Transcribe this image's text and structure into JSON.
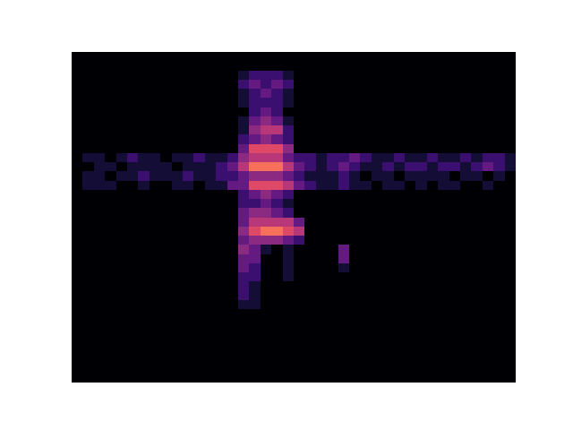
{
  "chart_data": {
    "type": "heatmap",
    "tick_labels": false,
    "grid": false,
    "zlim": [
      0,
      10
    ],
    "z": [
      [
        0,
        0,
        0,
        0,
        0,
        0,
        0,
        0,
        0,
        0,
        0,
        0,
        0,
        0,
        0,
        0,
        0,
        0,
        0,
        0,
        0,
        0,
        0,
        0,
        0,
        0,
        0,
        0,
        0,
        0,
        0,
        0,
        0,
        0,
        0,
        0,
        0,
        0,
        0,
        0
      ],
      [
        0,
        0,
        0,
        0,
        0,
        0,
        0,
        0,
        0,
        0,
        0,
        0,
        0,
        0,
        0,
        0,
        0,
        0,
        0,
        0,
        0,
        0,
        0,
        0,
        0,
        0,
        0,
        0,
        0,
        0,
        0,
        0,
        0,
        0,
        0,
        0,
        0,
        0,
        0,
        0
      ],
      [
        0,
        0,
        0,
        0,
        0,
        0,
        0,
        0,
        0,
        0,
        0,
        0,
        0,
        0,
        0,
        1,
        2,
        2,
        2,
        1,
        0,
        0,
        0,
        0,
        0,
        0,
        0,
        0,
        0,
        0,
        0,
        0,
        0,
        0,
        0,
        0,
        0,
        0,
        0,
        0
      ],
      [
        0,
        0,
        0,
        0,
        0,
        0,
        0,
        0,
        0,
        0,
        0,
        0,
        0,
        0,
        0,
        2,
        3,
        2,
        3,
        2,
        0,
        0,
        0,
        0,
        0,
        0,
        0,
        0,
        0,
        0,
        0,
        0,
        0,
        0,
        0,
        0,
        0,
        0,
        0,
        0
      ],
      [
        0,
        0,
        0,
        0,
        0,
        0,
        0,
        0,
        0,
        0,
        0,
        0,
        0,
        0,
        0,
        1,
        2,
        3,
        2,
        1,
        0,
        0,
        0,
        0,
        0,
        0,
        0,
        0,
        0,
        0,
        0,
        0,
        0,
        0,
        0,
        0,
        0,
        0,
        0,
        0
      ],
      [
        0,
        0,
        0,
        0,
        0,
        0,
        0,
        0,
        0,
        0,
        0,
        0,
        0,
        0,
        0,
        1,
        2,
        2,
        2,
        1,
        0,
        0,
        0,
        0,
        0,
        0,
        0,
        0,
        0,
        0,
        0,
        0,
        0,
        0,
        0,
        0,
        0,
        0,
        0,
        0
      ],
      [
        0,
        0,
        0,
        0,
        0,
        0,
        0,
        0,
        0,
        0,
        0,
        0,
        0,
        0,
        0,
        0,
        2,
        3,
        2,
        0,
        0,
        0,
        0,
        0,
        0,
        0,
        0,
        0,
        0,
        0,
        0,
        0,
        0,
        0,
        0,
        0,
        0,
        0,
        0,
        0
      ],
      [
        0,
        0,
        0,
        0,
        0,
        0,
        0,
        0,
        0,
        0,
        0,
        0,
        0,
        0,
        0,
        1,
        3,
        4,
        3,
        1,
        0,
        0,
        0,
        0,
        0,
        0,
        0,
        0,
        0,
        0,
        0,
        0,
        0,
        0,
        0,
        0,
        0,
        0,
        0,
        0
      ],
      [
        0,
        0,
        0,
        0,
        0,
        0,
        0,
        0,
        0,
        0,
        0,
        0,
        0,
        0,
        0,
        1,
        4,
        5,
        5,
        2,
        0,
        0,
        0,
        0,
        0,
        0,
        0,
        0,
        0,
        0,
        0,
        0,
        0,
        0,
        0,
        0,
        0,
        0,
        0,
        0
      ],
      [
        0,
        0,
        0,
        0,
        0,
        0,
        0,
        0,
        0,
        0,
        0,
        0,
        0,
        0,
        0,
        2,
        3,
        4,
        3,
        2,
        0,
        0,
        0,
        0,
        0,
        0,
        0,
        0,
        0,
        0,
        0,
        0,
        0,
        0,
        0,
        0,
        0,
        0,
        0,
        0
      ],
      [
        0,
        0,
        0,
        0,
        0,
        0,
        0,
        0,
        0,
        0,
        0,
        0,
        0,
        0,
        0,
        3,
        6,
        6,
        6,
        4,
        0,
        0,
        0,
        0,
        0,
        0,
        0,
        0,
        0,
        0,
        0,
        0,
        0,
        0,
        0,
        0,
        0,
        0,
        0,
        0
      ],
      [
        0,
        1,
        1,
        0,
        1,
        2,
        1,
        1,
        0,
        1,
        1,
        2,
        1,
        1,
        2,
        4,
        5,
        5,
        5,
        3,
        2,
        2,
        1,
        2,
        2,
        3,
        2,
        1,
        1,
        2,
        1,
        1,
        2,
        1,
        1,
        2,
        1,
        2,
        2,
        1
      ],
      [
        0,
        0,
        1,
        1,
        0,
        1,
        1,
        1,
        1,
        0,
        1,
        1,
        1,
        2,
        3,
        5,
        7,
        7,
        7,
        5,
        3,
        2,
        1,
        2,
        3,
        2,
        1,
        1,
        2,
        1,
        2,
        2,
        1,
        2,
        2,
        1,
        2,
        3,
        2,
        1
      ],
      [
        0,
        1,
        1,
        0,
        1,
        1,
        2,
        1,
        1,
        1,
        2,
        1,
        1,
        2,
        2,
        3,
        4,
        4,
        4,
        3,
        2,
        1,
        1,
        1,
        2,
        1,
        0,
        1,
        1,
        0,
        1,
        1,
        1,
        1,
        0,
        1,
        1,
        0,
        1,
        0
      ],
      [
        0,
        1,
        1,
        1,
        0,
        0,
        1,
        0,
        0,
        1,
        1,
        0,
        1,
        1,
        3,
        3,
        6,
        6,
        6,
        5,
        3,
        2,
        1,
        1,
        2,
        1,
        1,
        0,
        1,
        1,
        0,
        1,
        0,
        1,
        1,
        0,
        0,
        1,
        0,
        0
      ],
      [
        0,
        0,
        0,
        0,
        0,
        0,
        0,
        0,
        0,
        0,
        0,
        0,
        0,
        0,
        0,
        2,
        3,
        4,
        3,
        2,
        0,
        0,
        0,
        0,
        0,
        0,
        0,
        0,
        0,
        0,
        0,
        0,
        0,
        0,
        0,
        0,
        0,
        0,
        0,
        0
      ],
      [
        0,
        0,
        0,
        0,
        0,
        0,
        0,
        0,
        0,
        0,
        0,
        0,
        0,
        0,
        0,
        2,
        2,
        3,
        2,
        1,
        0,
        0,
        0,
        0,
        0,
        0,
        0,
        0,
        0,
        0,
        0,
        0,
        0,
        0,
        0,
        0,
        0,
        0,
        0,
        0
      ],
      [
        0,
        0,
        0,
        0,
        0,
        0,
        0,
        0,
        0,
        0,
        0,
        0,
        0,
        0,
        0,
        3,
        4,
        4,
        3,
        2,
        0,
        0,
        0,
        0,
        0,
        0,
        0,
        0,
        0,
        0,
        0,
        0,
        0,
        0,
        0,
        0,
        0,
        0,
        0,
        0
      ],
      [
        0,
        0,
        0,
        0,
        0,
        0,
        0,
        0,
        0,
        0,
        0,
        0,
        0,
        0,
        0,
        3,
        5,
        5,
        5,
        5,
        3,
        0,
        0,
        0,
        0,
        0,
        0,
        0,
        0,
        0,
        0,
        0,
        0,
        0,
        0,
        0,
        0,
        0,
        0,
        0
      ],
      [
        0,
        0,
        0,
        0,
        0,
        0,
        0,
        0,
        0,
        0,
        0,
        0,
        0,
        0,
        0,
        4,
        6,
        7,
        7,
        6,
        5,
        0,
        0,
        0,
        0,
        0,
        0,
        0,
        0,
        0,
        0,
        0,
        0,
        0,
        0,
        0,
        0,
        0,
        0,
        0
      ],
      [
        0,
        0,
        0,
        0,
        0,
        0,
        0,
        0,
        0,
        0,
        0,
        0,
        0,
        0,
        0,
        3,
        4,
        4,
        4,
        3,
        2,
        0,
        0,
        0,
        0,
        0,
        0,
        0,
        0,
        0,
        0,
        0,
        0,
        0,
        0,
        0,
        0,
        0,
        0,
        0
      ],
      [
        0,
        0,
        0,
        0,
        0,
        0,
        0,
        0,
        0,
        0,
        0,
        0,
        0,
        0,
        0,
        4,
        3,
        1,
        0,
        1,
        0,
        0,
        0,
        0,
        3,
        0,
        0,
        0,
        0,
        0,
        0,
        0,
        0,
        0,
        0,
        0,
        0,
        0,
        0,
        0
      ],
      [
        0,
        0,
        0,
        0,
        0,
        0,
        0,
        0,
        0,
        0,
        0,
        0,
        0,
        0,
        0,
        3,
        3,
        0,
        0,
        1,
        0,
        0,
        0,
        0,
        3,
        0,
        0,
        0,
        0,
        0,
        0,
        0,
        0,
        0,
        0,
        0,
        0,
        0,
        0,
        0
      ],
      [
        0,
        0,
        0,
        0,
        0,
        0,
        0,
        0,
        0,
        0,
        0,
        0,
        0,
        0,
        0,
        3,
        2,
        0,
        0,
        1,
        0,
        0,
        0,
        0,
        1,
        0,
        0,
        0,
        0,
        0,
        0,
        0,
        0,
        0,
        0,
        0,
        0,
        0,
        0,
        0
      ],
      [
        0,
        0,
        0,
        0,
        0,
        0,
        0,
        0,
        0,
        0,
        0,
        0,
        0,
        0,
        0,
        2,
        2,
        0,
        0,
        1,
        0,
        0,
        0,
        0,
        0,
        0,
        0,
        0,
        0,
        0,
        0,
        0,
        0,
        0,
        0,
        0,
        0,
        0,
        0,
        0
      ],
      [
        0,
        0,
        0,
        0,
        0,
        0,
        0,
        0,
        0,
        0,
        0,
        0,
        0,
        0,
        0,
        2,
        1,
        0,
        0,
        0,
        0,
        0,
        0,
        0,
        0,
        0,
        0,
        0,
        0,
        0,
        0,
        0,
        0,
        0,
        0,
        0,
        0,
        0,
        0,
        0
      ],
      [
        0,
        0,
        0,
        0,
        0,
        0,
        0,
        0,
        0,
        0,
        0,
        0,
        0,
        0,
        0,
        2,
        1,
        0,
        0,
        0,
        0,
        0,
        0,
        0,
        0,
        0,
        0,
        0,
        0,
        0,
        0,
        0,
        0,
        0,
        0,
        0,
        0,
        0,
        0,
        0
      ],
      [
        0,
        0,
        0,
        0,
        0,
        0,
        0,
        0,
        0,
        0,
        0,
        0,
        0,
        0,
        0,
        1,
        1,
        0,
        0,
        0,
        0,
        0,
        0,
        0,
        0,
        0,
        0,
        0,
        0,
        0,
        0,
        0,
        0,
        0,
        0,
        0,
        0,
        0,
        0,
        0
      ],
      [
        0,
        0,
        0,
        0,
        0,
        0,
        0,
        0,
        0,
        0,
        0,
        0,
        0,
        0,
        0,
        0,
        0,
        0,
        0,
        0,
        0,
        0,
        0,
        0,
        0,
        0,
        0,
        0,
        0,
        0,
        0,
        0,
        0,
        0,
        0,
        0,
        0,
        0,
        0,
        0
      ],
      [
        0,
        0,
        0,
        0,
        0,
        0,
        0,
        0,
        0,
        0,
        0,
        0,
        0,
        0,
        0,
        0,
        0,
        0,
        0,
        0,
        0,
        0,
        0,
        0,
        0,
        0,
        0,
        0,
        0,
        0,
        0,
        0,
        0,
        0,
        0,
        0,
        0,
        0,
        0,
        0
      ],
      [
        0,
        0,
        0,
        0,
        0,
        0,
        0,
        0,
        0,
        0,
        0,
        0,
        0,
        0,
        0,
        0,
        0,
        0,
        0,
        0,
        0,
        0,
        0,
        0,
        0,
        0,
        0,
        0,
        0,
        0,
        0,
        0,
        0,
        0,
        0,
        0,
        0,
        0,
        0,
        0
      ],
      [
        0,
        0,
        0,
        0,
        0,
        0,
        0,
        0,
        0,
        0,
        0,
        0,
        0,
        0,
        0,
        0,
        0,
        0,
        0,
        0,
        0,
        0,
        0,
        0,
        0,
        0,
        0,
        0,
        0,
        0,
        0,
        0,
        0,
        0,
        0,
        0,
        0,
        0,
        0,
        0
      ],
      [
        0,
        0,
        0,
        0,
        0,
        0,
        0,
        0,
        0,
        0,
        0,
        0,
        0,
        0,
        0,
        0,
        0,
        0,
        0,
        0,
        0,
        0,
        0,
        0,
        0,
        0,
        0,
        0,
        0,
        0,
        0,
        0,
        0,
        0,
        0,
        0,
        0,
        0,
        0,
        0
      ],
      [
        0,
        0,
        0,
        0,
        0,
        0,
        0,
        0,
        0,
        0,
        0,
        0,
        0,
        0,
        0,
        0,
        0,
        0,
        0,
        0,
        0,
        0,
        0,
        0,
        0,
        0,
        0,
        0,
        0,
        0,
        0,
        0,
        0,
        0,
        0,
        0,
        0,
        0,
        0,
        0
      ],
      [
        0,
        0,
        0,
        0,
        0,
        0,
        0,
        0,
        0,
        0,
        0,
        0,
        0,
        0,
        0,
        0,
        0,
        0,
        0,
        0,
        0,
        0,
        0,
        0,
        0,
        0,
        0,
        0,
        0,
        0,
        0,
        0,
        0,
        0,
        0,
        0,
        0,
        0,
        0,
        0
      ],
      [
        0,
        0,
        0,
        0,
        0,
        0,
        0,
        0,
        0,
        0,
        0,
        0,
        0,
        0,
        0,
        0,
        0,
        0,
        0,
        0,
        0,
        0,
        0,
        0,
        0,
        0,
        0,
        0,
        0,
        0,
        0,
        0,
        0,
        0,
        0,
        0,
        0,
        0,
        0,
        0
      ]
    ]
  }
}
